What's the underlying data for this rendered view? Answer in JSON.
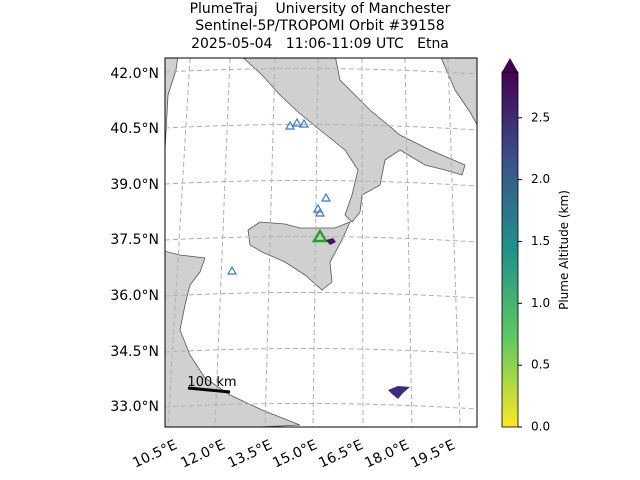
{
  "title": [
    "PlumeTraj    University of Manchester",
    "Sentinel-5P/TROPOMI Orbit #39158",
    "2025-05-04   11:06-11:09 UTC   Etna"
  ],
  "latitude_labels": [
    "42.0°N",
    "40.5°N",
    "39.0°N",
    "37.5°N",
    "36.0°N",
    "34.5°N",
    "33.0°N"
  ],
  "longitude_labels": [
    "10.5°E",
    "12.0°E",
    "13.5°E",
    "15.0°E",
    "16.5°E",
    "18.0°E",
    "19.5°E"
  ],
  "scale_bar": "100 km",
  "colorbar": {
    "label": "Plume Altitude (km)",
    "lim": [
      0,
      2.87
    ],
    "ticks": [
      {
        "value": 0,
        "label": "0.0"
      },
      0.5,
      {
        "value": 1,
        "label": "1.0"
      },
      1.5,
      {
        "value": 2,
        "label": "2.0"
      },
      2.5
    ]
  }
}
